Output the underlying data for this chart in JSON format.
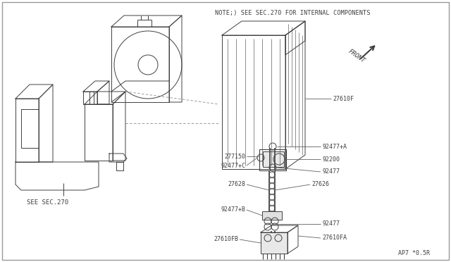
{
  "bg_color": "#ffffff",
  "line_color": "#404040",
  "note_text": "NOTE;) SEE SEC.270 FOR INTERNAL COMPONENTS",
  "front_text": "FRONT",
  "see_sec_text": "SEE SEC.270",
  "part_code": "AP7 *0.5R",
  "fig_width": 6.4,
  "fig_height": 3.72,
  "dpi": 100
}
